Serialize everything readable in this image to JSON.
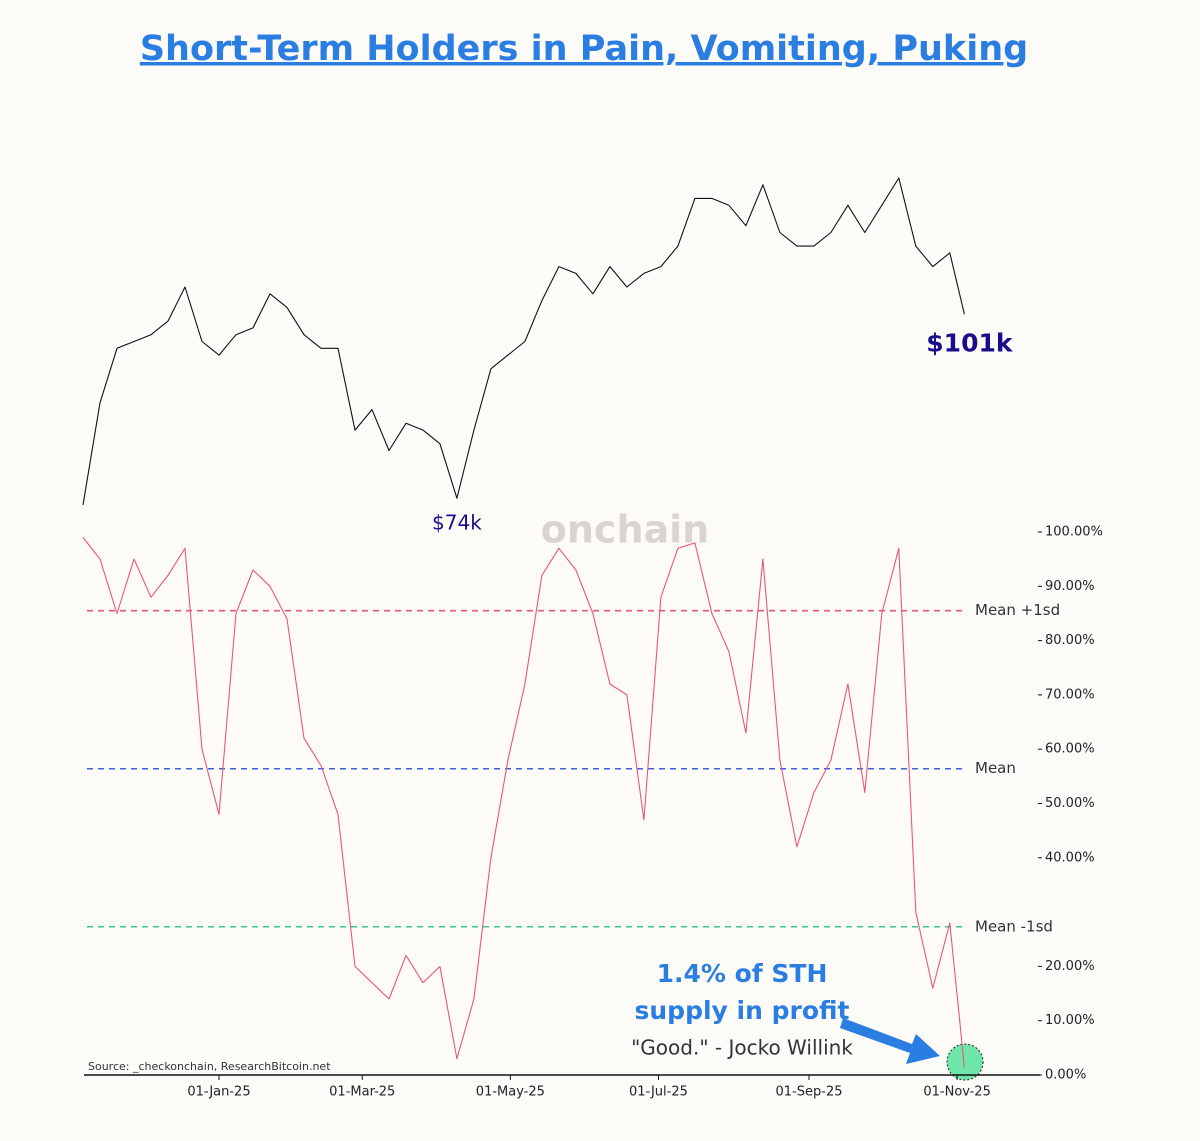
{
  "chart_data": [
    {
      "type": "line",
      "title": "Short-Term Holders in Pain, Vomiting, Puking",
      "color": "#111111",
      "x": [
        "2024-11-06",
        "2024-11-13",
        "2024-11-20",
        "2024-11-27",
        "2024-12-04",
        "2024-12-11",
        "2024-12-18",
        "2024-12-25",
        "2025-01-01",
        "2025-01-08",
        "2025-01-15",
        "2025-01-22",
        "2025-01-29",
        "2025-02-05",
        "2025-02-12",
        "2025-02-19",
        "2025-02-26",
        "2025-03-05",
        "2025-03-12",
        "2025-03-19",
        "2025-03-26",
        "2025-04-02",
        "2025-04-09",
        "2025-04-16",
        "2025-04-23",
        "2025-04-30",
        "2025-05-07",
        "2025-05-14",
        "2025-05-21",
        "2025-05-28",
        "2025-06-04",
        "2025-06-11",
        "2025-06-18",
        "2025-06-25",
        "2025-07-02",
        "2025-07-09",
        "2025-07-16",
        "2025-07-23",
        "2025-07-30",
        "2025-08-06",
        "2025-08-13",
        "2025-08-20",
        "2025-08-27",
        "2025-09-03",
        "2025-09-10",
        "2025-09-17",
        "2025-09-24",
        "2025-10-01",
        "2025-10-08",
        "2025-10-15",
        "2025-10-22",
        "2025-10-29",
        "2025-11-04"
      ],
      "values": [
        73,
        88,
        96,
        97,
        98,
        100,
        105,
        97,
        95,
        98,
        99,
        104,
        102,
        98,
        96,
        96,
        84,
        87,
        81,
        85,
        84,
        82,
        74,
        84,
        93,
        95,
        97,
        103,
        108,
        107,
        104,
        108,
        105,
        107,
        108,
        111,
        118,
        118,
        117,
        114,
        120,
        113,
        111,
        111,
        113,
        117,
        113,
        117,
        121,
        111,
        108,
        110,
        101
      ],
      "value_labels": [
        null,
        null,
        null,
        null,
        null,
        null,
        null,
        null,
        null,
        null,
        null,
        null,
        null,
        null,
        null,
        null,
        null,
        null,
        null,
        null,
        null,
        null,
        "$74k",
        null,
        null,
        null,
        null,
        null,
        null,
        null,
        null,
        null,
        null,
        null,
        null,
        null,
        null,
        null,
        null,
        null,
        null,
        null,
        null,
        null,
        null,
        null,
        null,
        null,
        null,
        null,
        null,
        null,
        "$101k"
      ]
    },
    {
      "type": "line",
      "color": "#e8577a",
      "watermark": "onchain",
      "x": [
        "2024-11-06",
        "2024-11-13",
        "2024-11-20",
        "2024-11-27",
        "2024-12-04",
        "2024-12-11",
        "2024-12-18",
        "2024-12-25",
        "2025-01-01",
        "2025-01-08",
        "2025-01-15",
        "2025-01-22",
        "2025-01-29",
        "2025-02-05",
        "2025-02-12",
        "2025-02-19",
        "2025-02-26",
        "2025-03-05",
        "2025-03-12",
        "2025-03-19",
        "2025-03-26",
        "2025-04-02",
        "2025-04-09",
        "2025-04-16",
        "2025-04-23",
        "2025-04-30",
        "2025-05-07",
        "2025-05-14",
        "2025-05-21",
        "2025-05-28",
        "2025-06-04",
        "2025-06-11",
        "2025-06-18",
        "2025-06-25",
        "2025-07-02",
        "2025-07-09",
        "2025-07-16",
        "2025-07-23",
        "2025-07-30",
        "2025-08-06",
        "2025-08-13",
        "2025-08-20",
        "2025-08-27",
        "2025-09-03",
        "2025-09-10",
        "2025-09-17",
        "2025-09-24",
        "2025-10-01",
        "2025-10-08",
        "2025-10-15",
        "2025-10-22",
        "2025-10-29",
        "2025-11-04"
      ],
      "values": [
        99,
        95,
        85,
        95,
        88,
        92,
        97,
        60,
        48,
        85,
        93,
        90,
        84,
        62,
        57,
        48,
        20,
        17,
        14,
        22,
        17,
        20,
        3,
        14,
        40,
        58,
        72,
        92,
        97,
        93,
        85,
        72,
        70,
        47,
        88,
        97,
        98,
        85,
        78,
        63,
        95,
        58,
        42,
        52,
        58,
        72,
        52,
        85,
        97,
        30,
        16,
        28,
        1.4
      ],
      "ylim": [
        0,
        100
      ],
      "yticks": [
        {
          "value": 0,
          "label": "0.00%"
        },
        {
          "value": 10,
          "label": "10.00%"
        },
        {
          "value": 20,
          "label": "20.00%"
        },
        {
          "value": 40,
          "label": "40.00%"
        },
        {
          "value": 50,
          "label": "50.00%"
        },
        {
          "value": 60,
          "label": "60.00%"
        },
        {
          "value": 70,
          "label": "70.00%"
        },
        {
          "value": 80,
          "label": "80.00%"
        },
        {
          "value": 90,
          "label": "90.00%"
        },
        {
          "value": 100,
          "label": "100.00%"
        }
      ],
      "xticks": [
        {
          "value": "2025-01-01",
          "label": "01-Jan-25"
        },
        {
          "value": "2025-03-01",
          "label": "01-Mar-25"
        },
        {
          "value": "2025-05-01",
          "label": "01-May-25"
        },
        {
          "value": "2025-07-01",
          "label": "01-Jul-25"
        },
        {
          "value": "2025-09-01",
          "label": "01-Sep-25"
        },
        {
          "value": "2025-11-01",
          "label": "01-Nov-25"
        }
      ],
      "reference_lines": [
        {
          "label": "Mean +1sd",
          "value": 85.5,
          "color": "#e8577a"
        },
        {
          "label": "Mean",
          "value": 56.4,
          "color": "#3a62d6"
        },
        {
          "label": "Mean -1sd",
          "value": 27.3,
          "color": "#3cc98a"
        }
      ],
      "annotations": [
        "1.4% of STH",
        "supply in profit",
        "\"Good.\" - Jocko Willink"
      ],
      "source": "Source: _checkonchain, ResearchBitcoin.net"
    }
  ]
}
